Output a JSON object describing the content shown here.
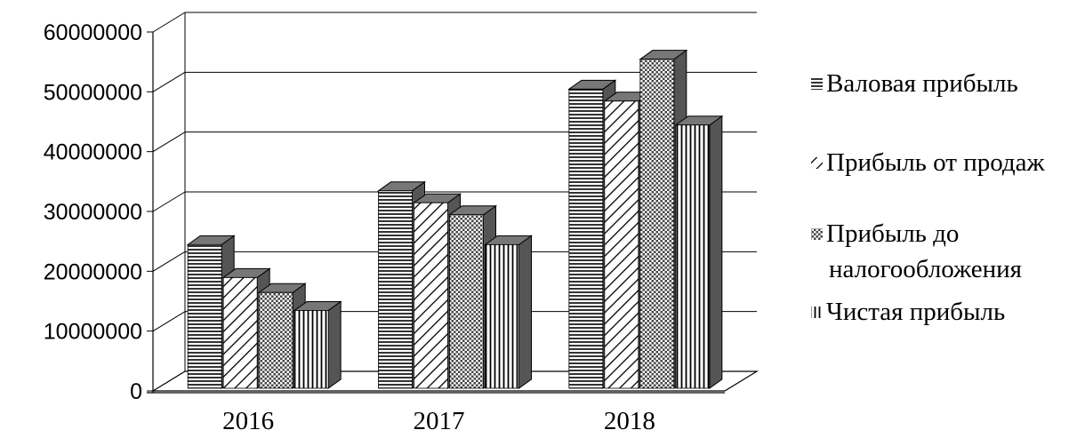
{
  "chart_data": {
    "type": "bar",
    "title": "",
    "xlabel": "",
    "ylabel": "",
    "categories": [
      "2016",
      "2017",
      "2018"
    ],
    "ylim": [
      0,
      60000000
    ],
    "yticks": [
      "0",
      "10000000",
      "20000000",
      "30000000",
      "40000000",
      "50000000",
      "60000000"
    ],
    "grid": true,
    "legend_position": "right",
    "series": [
      {
        "name": "Валовая прибыль",
        "pattern": "horizontal-lines",
        "values": [
          24000000,
          33000000,
          50000000
        ]
      },
      {
        "name": "Прибыль от продаж",
        "pattern": "diagonal-lines",
        "values": [
          18500000,
          31000000,
          48000000
        ]
      },
      {
        "name": "Прибыль до налогообложения",
        "legend_lines": [
          "Прибыль до",
          "налогообложения"
        ],
        "pattern": "crosshatch",
        "values": [
          16000000,
          29000000,
          55000000
        ]
      },
      {
        "name": "Чистая прибыль",
        "pattern": "vertical-lines",
        "values": [
          13000000,
          24000000,
          44000000
        ]
      }
    ],
    "colors": {
      "lines": "#000000",
      "grid": "#000000",
      "background": "#ffffff"
    }
  }
}
